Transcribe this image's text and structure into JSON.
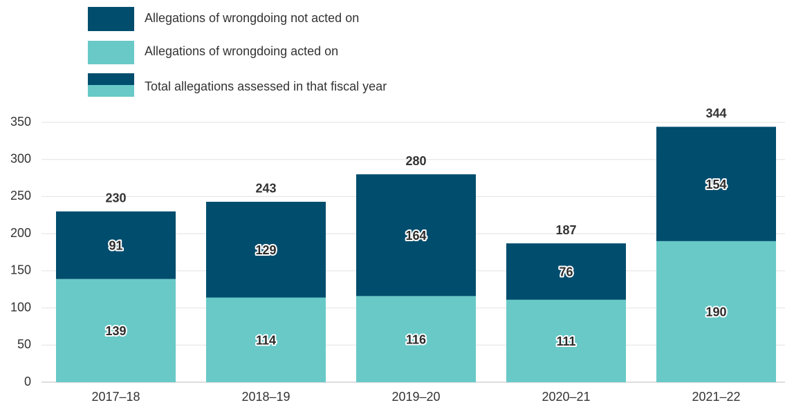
{
  "chart_data": {
    "type": "stacked_bar",
    "categories": [
      "2017–18",
      "2018–19",
      "2019–20",
      "2020–21",
      "2021–22"
    ],
    "series": [
      {
        "name": "Allegations of wrongdoing acted on",
        "color": "#68c9c7",
        "values": [
          139,
          114,
          116,
          111,
          190
        ]
      },
      {
        "name": "Allegations of wrongdoing not acted on",
        "color": "#004d6e",
        "values": [
          91,
          129,
          164,
          76,
          154
        ]
      }
    ],
    "total_name": "Total allegations assessed in that fiscal year",
    "totals": [
      230,
      243,
      280,
      187,
      344
    ],
    "ylim": [
      0,
      350
    ],
    "yticks": [
      0,
      50,
      100,
      150,
      200,
      250,
      300,
      350
    ],
    "grid": true
  }
}
